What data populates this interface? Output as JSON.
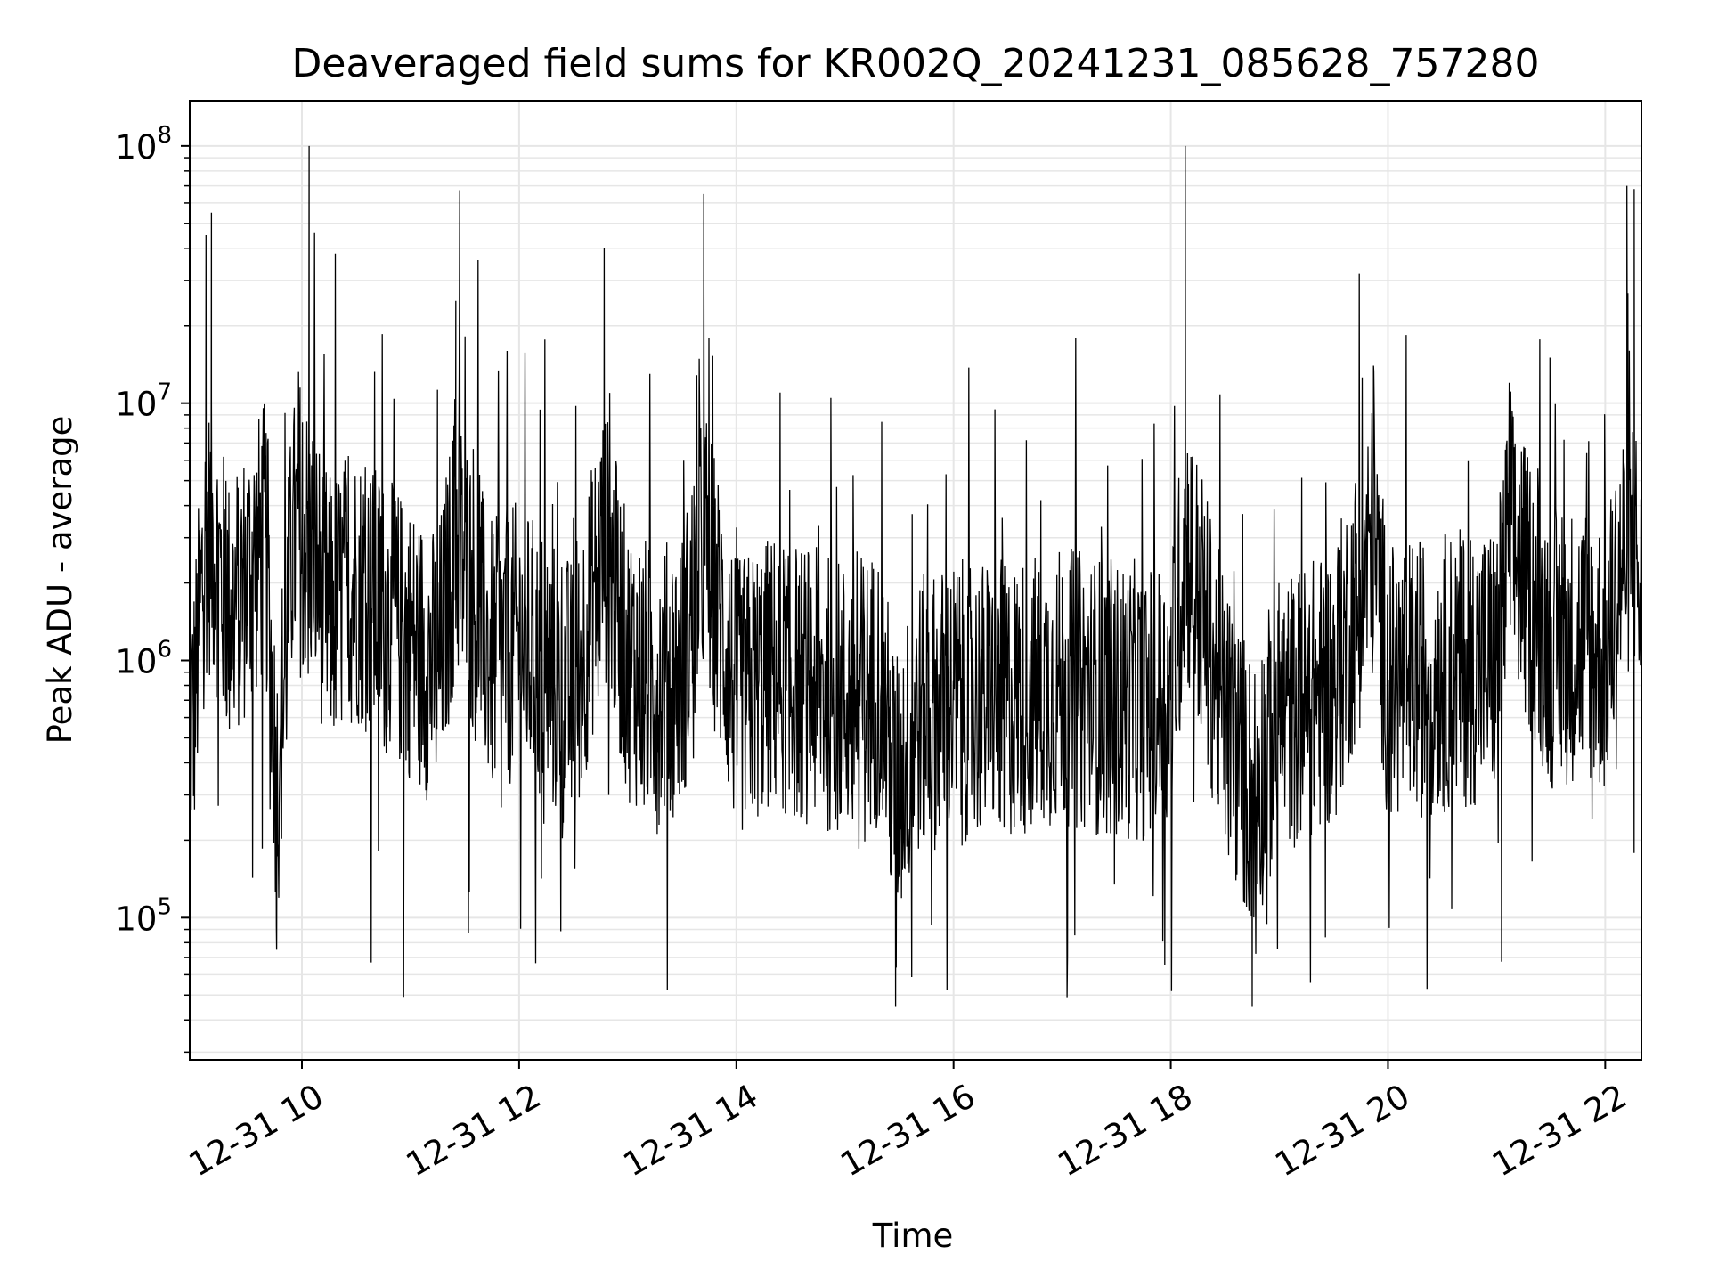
{
  "chart_data": {
    "type": "line",
    "title": "Deaveraged field sums for KR002Q_20241231_085628_757280",
    "xlabel": "Time",
    "ylabel": "Peak ADU - average",
    "yscale": "log",
    "xlim": [
      "12-31 08:58",
      "12-31 22:20"
    ],
    "ylim": [
      28000,
      150000000
    ],
    "x_tick_labels": [
      "12-31 10",
      "12-31 12",
      "12-31 14",
      "12-31 16",
      "12-31 18",
      "12-31 20",
      "12-31 22"
    ],
    "y_tick_labels": [
      {
        "base": "10",
        "exp": "5",
        "value": 100000
      },
      {
        "base": "10",
        "exp": "6",
        "value": 1000000
      },
      {
        "base": "10",
        "exp": "7",
        "value": 10000000
      },
      {
        "base": "10",
        "exp": "8",
        "value": 100000000
      }
    ],
    "grid": true,
    "legend": "none",
    "series": [
      {
        "color": "#000000",
        "x": [
          "12-31 09:00",
          "12-31 09:05",
          "12-31 09:07",
          "12-31 09:10",
          "12-31 09:20",
          "12-31 09:40",
          "12-31 09:46",
          "12-31 09:55",
          "12-31 10:04",
          "12-31 10:15",
          "12-31 10:30",
          "12-31 10:45",
          "12-31 11:00",
          "12-31 11:15",
          "12-31 11:25",
          "12-31 11:45",
          "12-31 12:00",
          "12-31 12:15",
          "12-31 12:30",
          "12-31 12:47",
          "12-31 13:00",
          "12-31 13:15",
          "12-31 13:30",
          "12-31 13:42",
          "12-31 14:00",
          "12-31 14:20",
          "12-31 14:40",
          "12-31 15:00",
          "12-31 15:20",
          "12-31 15:28",
          "12-31 15:40",
          "12-31 16:00",
          "12-31 16:30",
          "12-31 17:00",
          "12-31 17:30",
          "12-31 18:00",
          "12-31 18:08",
          "12-31 18:30",
          "12-31 18:45",
          "12-31 19:00",
          "12-31 19:30",
          "12-31 19:52",
          "12-31 20:00",
          "12-31 20:30",
          "12-31 21:00",
          "12-31 21:07",
          "12-31 21:30",
          "12-31 21:50",
          "12-31 22:00",
          "12-31 22:12",
          "12-31 22:16",
          "12-31 22:20"
        ],
        "y": [
          600000,
          2000000,
          45000000,
          55000000,
          1500000,
          3000000,
          75000,
          4000000,
          100000000,
          1500000,
          2000000,
          1500000,
          1200000,
          900000,
          25000000,
          1000000,
          1200000,
          900000,
          700000,
          40000000,
          1000000,
          800000,
          900000,
          65000000,
          700000,
          900000,
          800000,
          700000,
          800000,
          45000,
          600000,
          700000,
          700000,
          800000,
          700000,
          700000,
          100000000,
          600000,
          45000,
          600000,
          800000,
          14000000,
          800000,
          900000,
          1000000,
          12000000,
          1100000,
          1200000,
          1000000,
          70000000,
          68000000,
          1500000
        ]
      }
    ]
  }
}
